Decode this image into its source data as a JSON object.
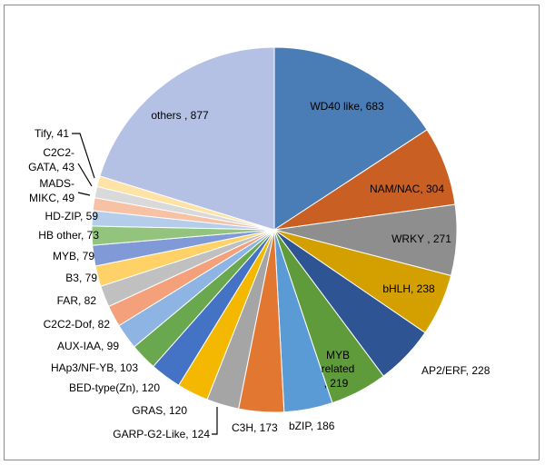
{
  "chart_data": {
    "type": "pie",
    "title": "",
    "slices": [
      {
        "label": "WD40 like",
        "value": 683,
        "color": "#4a7cb5"
      },
      {
        "label": "NAM/NAC",
        "value": 304,
        "color": "#c95f22"
      },
      {
        "label": "WRKY",
        "value": 271,
        "color": "#8e8e8e"
      },
      {
        "label": "bHLH",
        "value": 238,
        "color": "#d3a000"
      },
      {
        "label": "AP2/ERF",
        "value": 228,
        "color": "#2f5494"
      },
      {
        "label": "MYB related",
        "value": 219,
        "color": "#5f9a3b"
      },
      {
        "label": "bZIP",
        "value": 186,
        "color": "#5b9bd5"
      },
      {
        "label": "C3H",
        "value": 173,
        "color": "#e27732"
      },
      {
        "label": "GARP-G2-Like",
        "value": 124,
        "color": "#a5a5a5"
      },
      {
        "label": "GRAS",
        "value": 120,
        "color": "#f4b800"
      },
      {
        "label": "BED-type(Zn)",
        "value": 120,
        "color": "#4472c4"
      },
      {
        "label": "HAp3/NF-YB",
        "value": 103,
        "color": "#6aa84f"
      },
      {
        "label": "AUX-IAA",
        "value": 99,
        "color": "#8db4e2"
      },
      {
        "label": "C2C2-Dof",
        "value": 82,
        "color": "#f4a07a"
      },
      {
        "label": "FAR",
        "value": 82,
        "color": "#c0c0c0"
      },
      {
        "label": "B3",
        "value": 79,
        "color": "#ffd166"
      },
      {
        "label": "MYB",
        "value": 79,
        "color": "#7f9ad6"
      },
      {
        "label": "HB other",
        "value": 73,
        "color": "#93c47d"
      },
      {
        "label": "HD-ZIP",
        "value": 59,
        "color": "#b4cdea"
      },
      {
        "label": "MADS-MIKC",
        "value": 49,
        "color": "#f7c1a5"
      },
      {
        "label": "C2C2-GATA",
        "value": 43,
        "color": "#d9d9d9"
      },
      {
        "label": "Tify",
        "value": 41,
        "color": "#ffe3a6"
      },
      {
        "label": "others",
        "value": 877,
        "color": "#b4c1e4"
      }
    ]
  },
  "labels": {
    "wd40": "WD40 like, 683",
    "nac": "NAM/NAC, 304",
    "wrky": "WRKY , 271",
    "bhlh": "bHLH, 238",
    "ap2": "AP2/ERF, 228",
    "mybrel_1": "MYB",
    "mybrel_2": "related",
    "mybrel_3": ", 219",
    "bzip": "bZIP, 186",
    "c3h": "C3H, 173",
    "garp": "GARP-G2-Like, 124",
    "gras": "GRAS, 120",
    "bed": "BED-type(Zn), 120",
    "hap3": "HAp3/NF-YB, 103",
    "aux": "AUX-IAA, 99",
    "dof": "C2C2-Dof, 82",
    "far": "FAR, 82",
    "b3": "B3, 79",
    "myb": "MYB, 79",
    "hbother": "HB other, 73",
    "hdzip": "HD-ZIP, 59",
    "mads_1": "MADS-",
    "mads_2": "MIKC, 49",
    "gata_1": "C2C2-",
    "gata_2": "GATA, 43",
    "tify": "Tify, 41",
    "others": "others , 877"
  }
}
